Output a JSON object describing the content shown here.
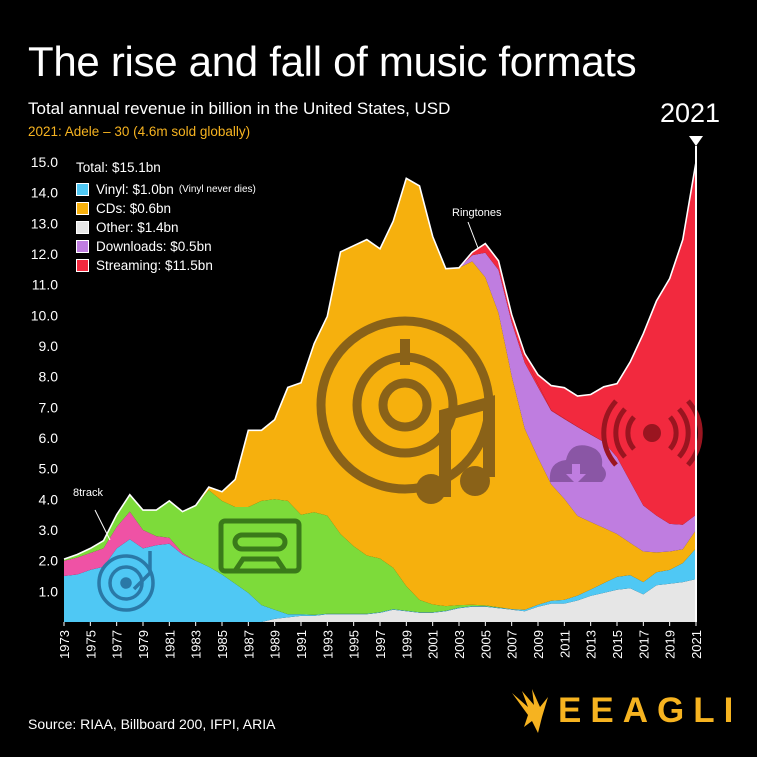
{
  "title": "The rise and fall of music formats",
  "subtitle": "Total annual revenue in billion in the United States, USD",
  "highlight": "2021: Adele – 30 (4.6m sold globally)",
  "year_callout": "2021",
  "source": "Source: RIAA, Billboard 200, IFPI, ARIA",
  "brand": "EEAGLI",
  "legend": {
    "total": "Total: $15.1bn",
    "items": [
      {
        "label": "Vinyl: $1.0bn",
        "note": "(Vinyl never dies)",
        "color": "#4fc8f4"
      },
      {
        "label": "CDs: $0.6bn",
        "note": "",
        "color": "#f6b00d"
      },
      {
        "label": "Other: $1.4bn",
        "note": "",
        "color": "#e6e6e6"
      },
      {
        "label": "Downloads: $0.5bn",
        "note": "",
        "color": "#bf7de0"
      },
      {
        "label": "Streaming: $11.5bn",
        "note": "",
        "color": "#f2293e"
      }
    ]
  },
  "annotations": [
    "8track",
    "Ringtones"
  ],
  "icons": [
    "turntable-icon",
    "cassette-icon",
    "cd-music-icon",
    "cloud-download-icon",
    "broadcast-icon",
    "eagle-logo-icon"
  ],
  "chart_data": {
    "type": "area",
    "stacked": true,
    "x": [
      1973,
      1974,
      1975,
      1976,
      1977,
      1978,
      1979,
      1980,
      1981,
      1982,
      1983,
      1984,
      1985,
      1986,
      1987,
      1988,
      1989,
      1990,
      1991,
      1992,
      1993,
      1994,
      1995,
      1996,
      1997,
      1998,
      1999,
      2000,
      2001,
      2002,
      2003,
      2004,
      2005,
      2006,
      2007,
      2008,
      2009,
      2010,
      2011,
      2012,
      2013,
      2014,
      2015,
      2016,
      2017,
      2018,
      2019,
      2020,
      2021
    ],
    "x_ticks": [
      "1973",
      "1975",
      "1977",
      "1979",
      "1981",
      "1983",
      "1985",
      "1987",
      "1989",
      "1991",
      "1993",
      "1995",
      "1997",
      "1999",
      "2001",
      "2003",
      "2005",
      "2007",
      "2009",
      "2011",
      "2013",
      "2015",
      "2017",
      "2019",
      "2021"
    ],
    "y_ticks": [
      "1.0",
      "2.0",
      "3.0",
      "4.0",
      "5.0",
      "6.0",
      "7.0",
      "8.0",
      "9.0",
      "10.0",
      "11.0",
      "12.0",
      "13.0",
      "14.0",
      "15.0"
    ],
    "ylim": [
      0,
      15
    ],
    "series": [
      {
        "name": "Other",
        "color": "#e6e6e6",
        "values": [
          0,
          0,
          0,
          0,
          0,
          0,
          0,
          0,
          0,
          0,
          0,
          0,
          0,
          0,
          0,
          0,
          0.1,
          0.15,
          0.2,
          0.2,
          0.25,
          0.25,
          0.25,
          0.25,
          0.3,
          0.4,
          0.35,
          0.3,
          0.3,
          0.35,
          0.45,
          0.5,
          0.5,
          0.45,
          0.4,
          0.35,
          0.5,
          0.6,
          0.6,
          0.7,
          0.85,
          0.95,
          1.05,
          1.1,
          0.9,
          1.2,
          1.25,
          1.3,
          1.4
        ]
      },
      {
        "name": "Vinyl",
        "color": "#4fc8f4",
        "values": [
          1.5,
          1.55,
          1.7,
          1.8,
          2.4,
          2.7,
          2.4,
          2.5,
          2.55,
          2.2,
          2.0,
          1.8,
          1.55,
          1.25,
          0.95,
          0.55,
          0.3,
          0.1,
          0.05,
          0.03,
          0.02,
          0.02,
          0.02,
          0.02,
          0.02,
          0.02,
          0.02,
          0.02,
          0.02,
          0.02,
          0.02,
          0.02,
          0.02,
          0.02,
          0.02,
          0.05,
          0.06,
          0.09,
          0.12,
          0.16,
          0.21,
          0.32,
          0.42,
          0.43,
          0.4,
          0.42,
          0.45,
          0.62,
          1.0
        ]
      },
      {
        "name": "8track",
        "color": "#ef52a5",
        "values": [
          0.5,
          0.55,
          0.55,
          0.6,
          0.7,
          0.9,
          0.6,
          0.3,
          0.2,
          0.05,
          0,
          0,
          0,
          0,
          0,
          0,
          0,
          0,
          0,
          0,
          0,
          0,
          0,
          0,
          0,
          0,
          0,
          0,
          0,
          0,
          0,
          0,
          0,
          0,
          0,
          0,
          0,
          0,
          0,
          0,
          0,
          0,
          0,
          0,
          0,
          0,
          0,
          0,
          0
        ]
      },
      {
        "name": "Cassette",
        "color": "#7ddb3a",
        "values": [
          0.05,
          0.1,
          0.15,
          0.25,
          0.4,
          0.55,
          0.65,
          0.85,
          1.2,
          1.35,
          1.8,
          2.5,
          2.4,
          2.5,
          2.8,
          3.4,
          3.6,
          3.7,
          3.25,
          3.35,
          3.2,
          2.6,
          2.2,
          1.9,
          1.75,
          1.35,
          0.8,
          0.4,
          0.25,
          0.15,
          0.08,
          0.04,
          0.02,
          0.01,
          0,
          0,
          0,
          0,
          0,
          0,
          0,
          0,
          0,
          0,
          0,
          0,
          0,
          0,
          0
        ]
      },
      {
        "name": "CDs",
        "color": "#f6b00d",
        "values": [
          0,
          0,
          0,
          0,
          0,
          0,
          0,
          0,
          0,
          0,
          0,
          0.1,
          0.3,
          0.9,
          2.5,
          2.3,
          2.6,
          3.7,
          4.3,
          5.5,
          6.5,
          9.2,
          9.8,
          10.3,
          10.1,
          11.3,
          13.3,
          13.5,
          12.0,
          11.0,
          11.0,
          11.2,
          10.7,
          9.6,
          7.6,
          5.9,
          4.8,
          3.8,
          3.3,
          2.6,
          2.2,
          1.8,
          1.4,
          1.05,
          1.0,
          0.65,
          0.6,
          0.45,
          0.6
        ]
      },
      {
        "name": "Downloads",
        "color": "#bf7de0",
        "values": [
          0,
          0,
          0,
          0,
          0,
          0,
          0,
          0,
          0,
          0,
          0,
          0,
          0,
          0,
          0,
          0,
          0,
          0,
          0,
          0,
          0,
          0,
          0,
          0,
          0,
          0,
          0,
          0,
          0,
          0,
          0,
          0.2,
          0.8,
          1.4,
          1.75,
          2.15,
          2.3,
          2.4,
          2.6,
          2.9,
          2.85,
          2.8,
          2.5,
          2.0,
          1.5,
          1.2,
          0.9,
          0.8,
          0.5
        ]
      },
      {
        "name": "Ringtones",
        "color": "#f2293e",
        "values": [
          0,
          0,
          0,
          0,
          0,
          0,
          0,
          0,
          0,
          0,
          0,
          0,
          0,
          0,
          0,
          0,
          0,
          0,
          0,
          0,
          0,
          0,
          0,
          0,
          0,
          0,
          0,
          0,
          0,
          0,
          0,
          0.1,
          0.3,
          0.3,
          0.25,
          0.2,
          0.1,
          0.02,
          0.02,
          0.01,
          0.01,
          0,
          0,
          0,
          0,
          0,
          0,
          0,
          0
        ]
      },
      {
        "name": "Streaming",
        "color": "#f2293e",
        "values": [
          0,
          0,
          0,
          0,
          0,
          0,
          0,
          0,
          0,
          0,
          0,
          0,
          0,
          0,
          0,
          0,
          0,
          0,
          0,
          0,
          0,
          0,
          0,
          0,
          0,
          0,
          0,
          0,
          0,
          0,
          0,
          0,
          0,
          0,
          0,
          0.1,
          0.3,
          0.8,
          1.0,
          1.0,
          1.3,
          1.8,
          2.4,
          3.9,
          5.6,
          7.0,
          8.0,
          9.3,
          11.5
        ]
      }
    ]
  }
}
